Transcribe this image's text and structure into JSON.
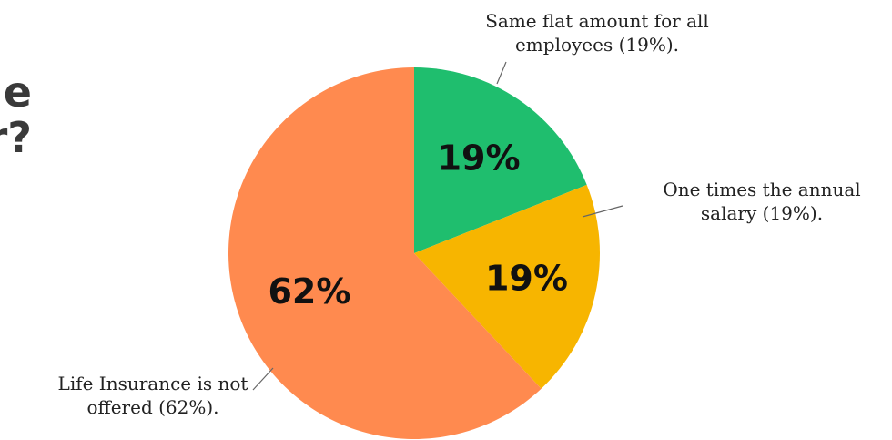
{
  "title_fragments": [
    "e",
    "r?"
  ],
  "chart_data": {
    "type": "pie",
    "title": "",
    "start_angle_deg": 0,
    "direction": "clockwise",
    "slices": [
      {
        "value": 19,
        "label": "19%",
        "callout": [
          "Same flat amount for all",
          "employees (19%)."
        ],
        "color": "#1fbe6e"
      },
      {
        "value": 19,
        "label": "19%",
        "callout": [
          "One times the annual",
          "salary (19%)."
        ],
        "color": "#f7b500"
      },
      {
        "value": 62,
        "label": "62%",
        "callout": [
          "Life Insurance is not",
          "offered (62%)."
        ],
        "color": "#ff8a4f"
      }
    ],
    "leader_line_color": "#666666"
  }
}
